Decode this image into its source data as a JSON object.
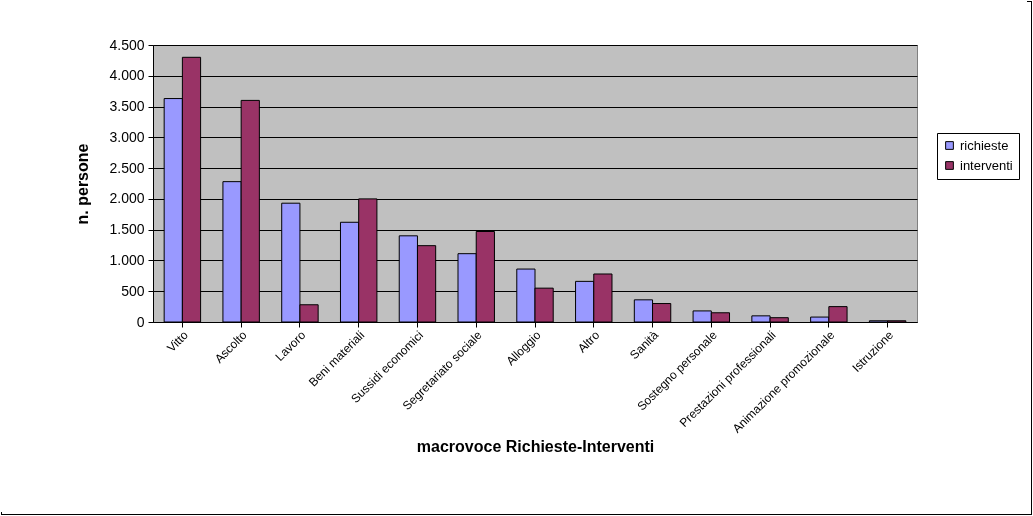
{
  "chart_data": {
    "type": "bar",
    "xlabel": "macrovoce Richieste-Interventi",
    "ylabel": "n. persone",
    "categories": [
      "Vitto",
      "Ascolto",
      "Lavoro",
      "Beni materiali",
      "Sussidi economici",
      "Segretariato sociale",
      "Alloggio",
      "Altro",
      "Sanità",
      "Sostegno personale",
      "Prestazioni professionali",
      "Animazione promozionale",
      "Istruzione"
    ],
    "series": [
      {
        "name": "richieste",
        "color": "#9999ff",
        "values": [
          3630,
          2280,
          1930,
          1620,
          1400,
          1110,
          860,
          660,
          360,
          180,
          100,
          80,
          20
        ]
      },
      {
        "name": "interventi",
        "color": "#993366",
        "values": [
          4300,
          3600,
          280,
          2000,
          1240,
          1470,
          550,
          780,
          300,
          150,
          70,
          250,
          20
        ]
      }
    ],
    "ylim": [
      0,
      4500
    ],
    "yticks": [
      0,
      {
        "value": 500,
        "label": "500"
      },
      {
        "value": 1000,
        "label": "1.000"
      },
      {
        "value": 1500,
        "label": "1.500"
      },
      {
        "value": 2000,
        "label": "2.000"
      },
      {
        "value": 2500,
        "label": "2.500"
      },
      {
        "value": 3000,
        "label": "3.000"
      },
      {
        "value": 3500,
        "label": "3.500"
      },
      {
        "value": 4000,
        "label": "4.000"
      },
      {
        "value": 4500,
        "label": "4.500"
      }
    ],
    "grid": "y",
    "legend": "right"
  }
}
